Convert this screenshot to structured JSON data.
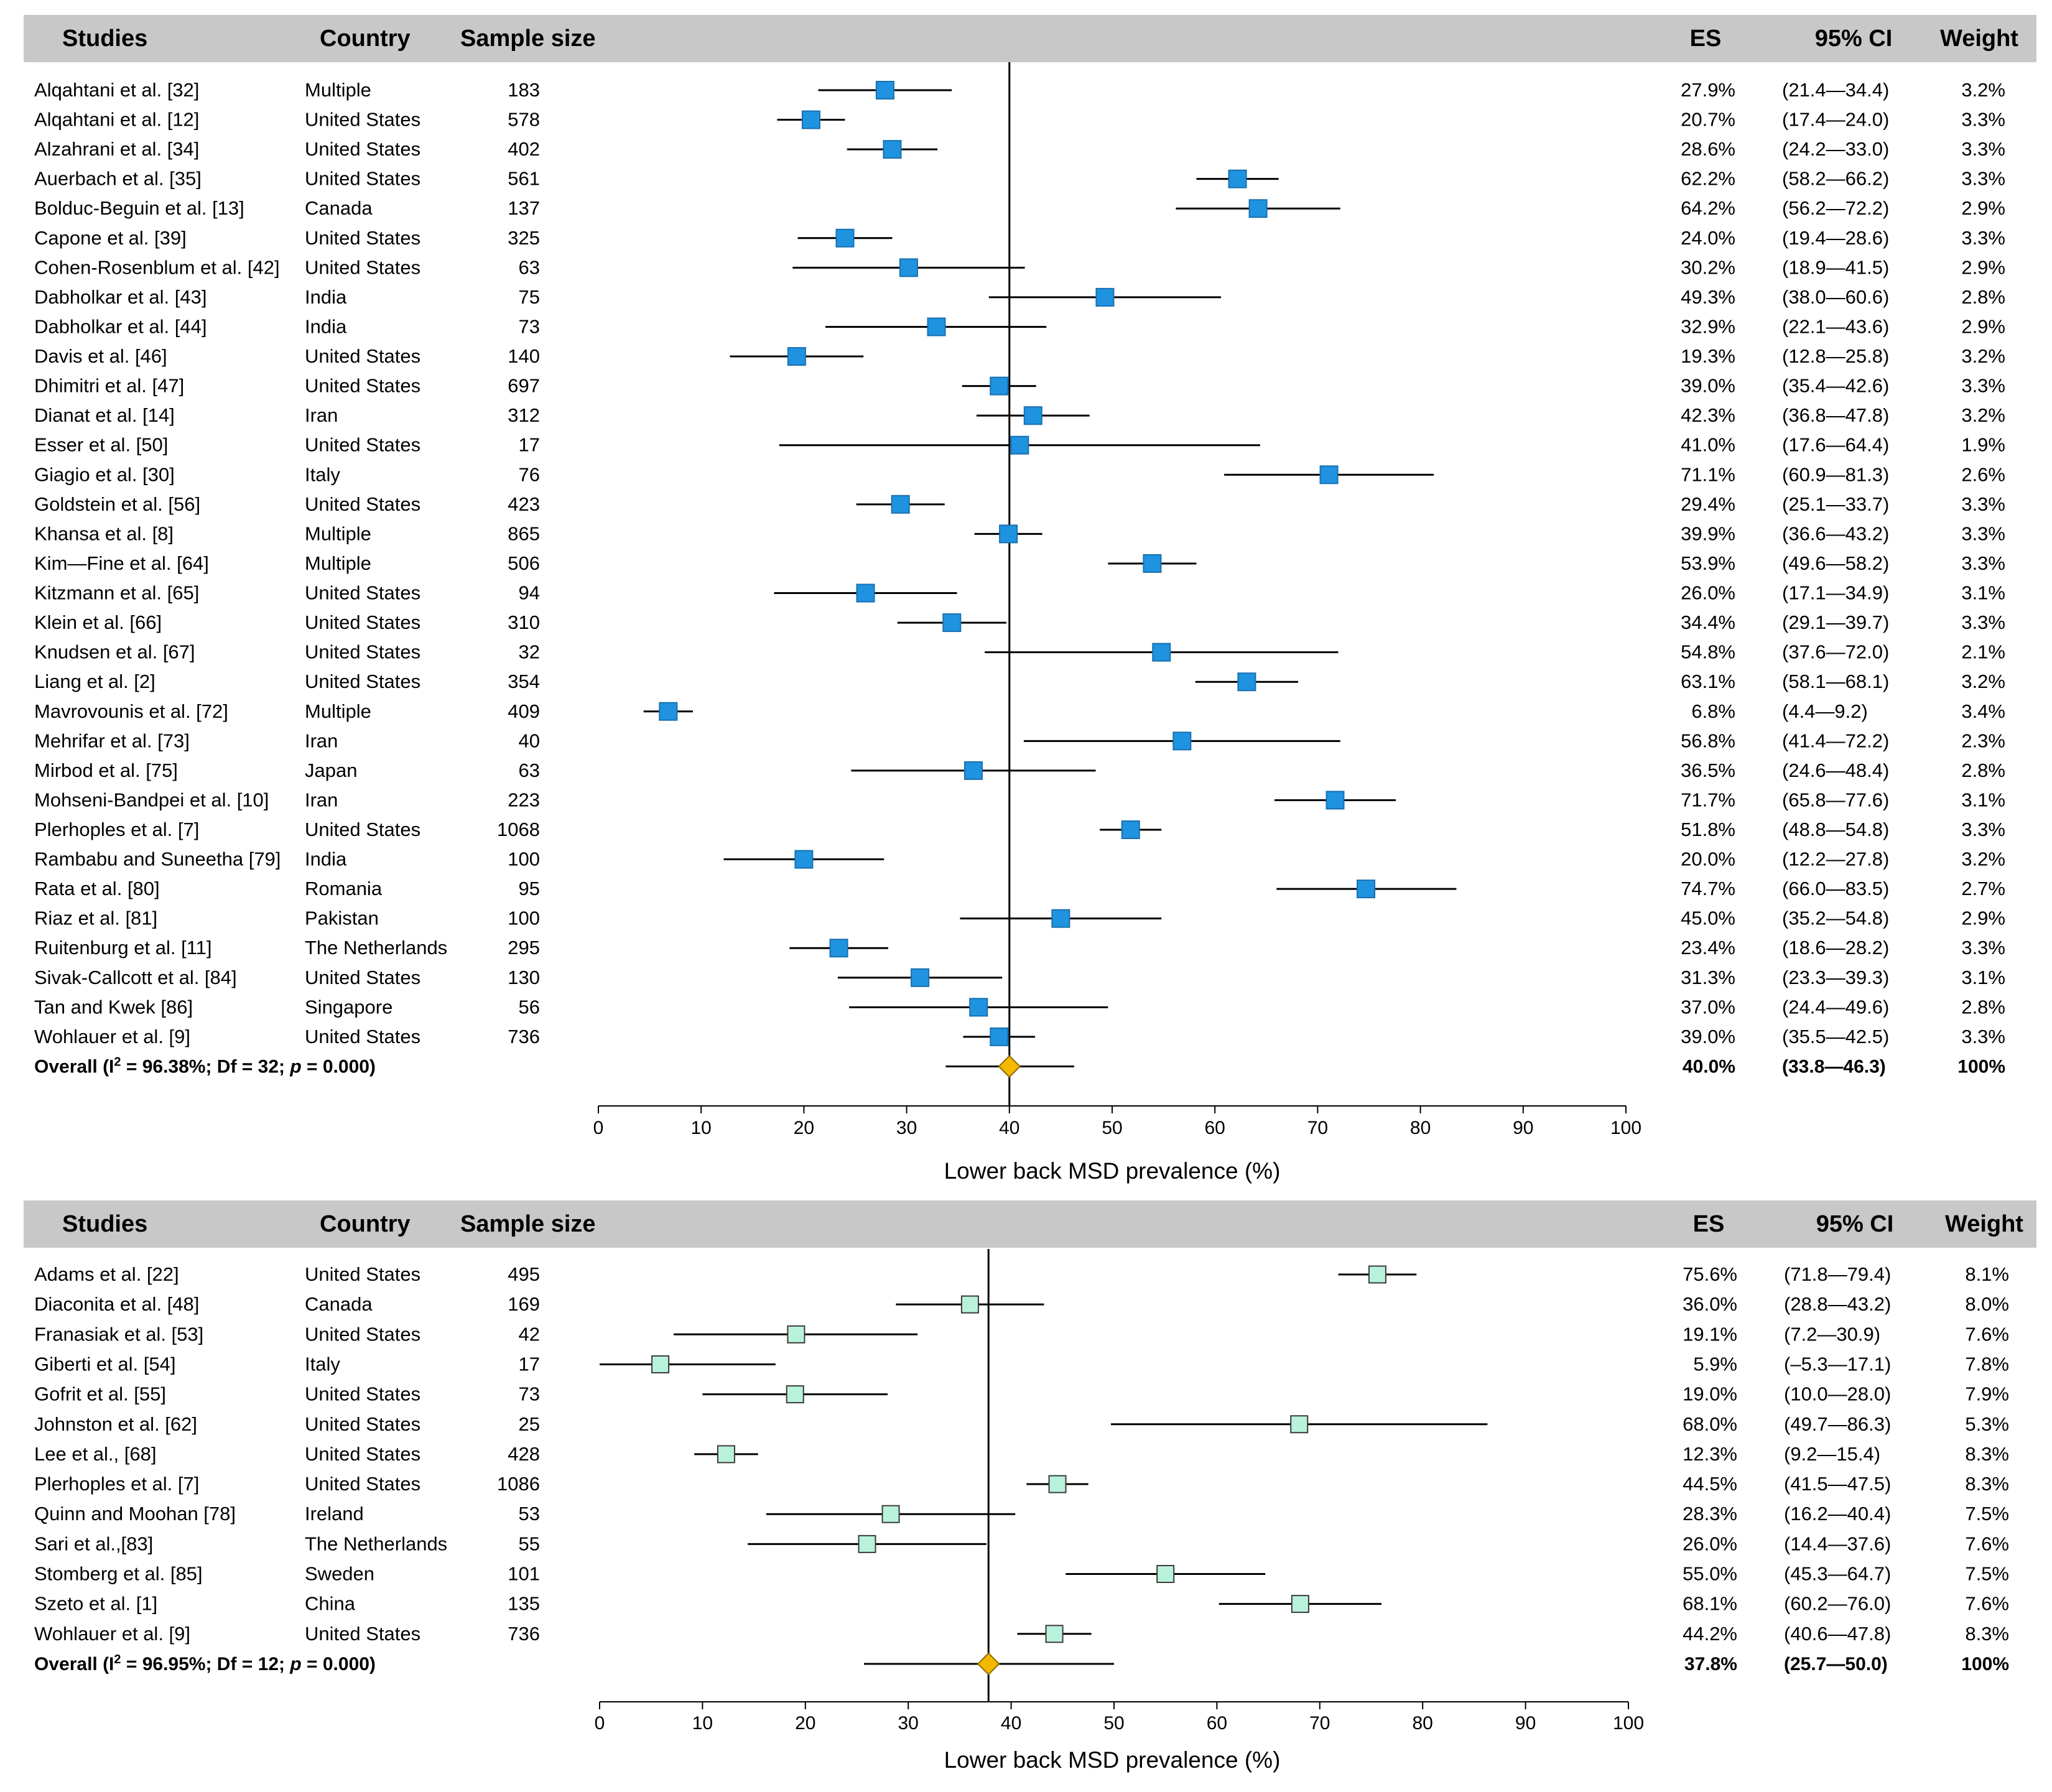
{
  "columns": {
    "studies": "Studies",
    "country": "Country",
    "sample_size": "Sample size",
    "es": "ES",
    "ci": "95% CI",
    "weight": "Weight"
  },
  "colors": {
    "header_bg": "#c8c8c8",
    "panel1_marker": "#1f93e0",
    "panel2_marker": "#b9f2da",
    "diamond": "#f5b800"
  },
  "chart_data": [
    {
      "type": "forest",
      "xlabel": "Lower back MSD prevalence (%)",
      "xlim": [
        0,
        100
      ],
      "xticks": [
        0,
        10,
        20,
        30,
        40,
        50,
        60,
        70,
        80,
        90,
        100
      ],
      "reference_line": 40.0,
      "studies": [
        {
          "study": "Alqahtani et al. [32]",
          "country": "Multiple",
          "n": "183",
          "es": 27.9,
          "lo": 21.4,
          "hi": 34.4,
          "es_label": "27.9%",
          "ci_label": "(21.4—34.4)",
          "weight_label": "3.2%"
        },
        {
          "study": "Alqahtani et al. [12]",
          "country": "United States",
          "n": "578",
          "es": 20.7,
          "lo": 17.4,
          "hi": 24.0,
          "es_label": "20.7%",
          "ci_label": "(17.4—24.0)",
          "weight_label": "3.3%"
        },
        {
          "study": "Alzahrani et al. [34]",
          "country": "United States",
          "n": "402",
          "es": 28.6,
          "lo": 24.2,
          "hi": 33.0,
          "es_label": "28.6%",
          "ci_label": "(24.2—33.0)",
          "weight_label": "3.3%"
        },
        {
          "study": "Auerbach et al. [35]",
          "country": "United States",
          "n": "561",
          "es": 62.2,
          "lo": 58.2,
          "hi": 66.2,
          "es_label": "62.2%",
          "ci_label": "(58.2—66.2)",
          "weight_label": "3.3%"
        },
        {
          "study": "Bolduc-Beguin et al. [13]",
          "country": "Canada",
          "n": "137",
          "es": 64.2,
          "lo": 56.2,
          "hi": 72.2,
          "es_label": "64.2%",
          "ci_label": "(56.2—72.2)",
          "weight_label": "2.9%"
        },
        {
          "study": "Capone et al. [39]",
          "country": "United States",
          "n": "325",
          "es": 24.0,
          "lo": 19.4,
          "hi": 28.6,
          "es_label": "24.0%",
          "ci_label": "(19.4—28.6)",
          "weight_label": "3.3%"
        },
        {
          "study": "Cohen-Rosenblum et al. [42]",
          "country": "United States",
          "n": "63",
          "es": 30.2,
          "lo": 18.9,
          "hi": 41.5,
          "es_label": "30.2%",
          "ci_label": "(18.9—41.5)",
          "weight_label": "2.9%"
        },
        {
          "study": "Dabholkar et al. [43]",
          "country": "India",
          "n": "75",
          "es": 49.3,
          "lo": 38.0,
          "hi": 60.6,
          "es_label": "49.3%",
          "ci_label": "(38.0—60.6)",
          "weight_label": "2.8%"
        },
        {
          "study": "Dabholkar et al. [44]",
          "country": "India",
          "n": "73",
          "es": 32.9,
          "lo": 22.1,
          "hi": 43.6,
          "es_label": "32.9%",
          "ci_label": "(22.1—43.6)",
          "weight_label": "2.9%"
        },
        {
          "study": "Davis et al. [46]",
          "country": "United States",
          "n": "140",
          "es": 19.3,
          "lo": 12.8,
          "hi": 25.8,
          "es_label": "19.3%",
          "ci_label": "(12.8—25.8)",
          "weight_label": "3.2%"
        },
        {
          "study": "Dhimitri et al. [47]",
          "country": "United States",
          "n": "697",
          "es": 39.0,
          "lo": 35.4,
          "hi": 42.6,
          "es_label": "39.0%",
          "ci_label": "(35.4—42.6)",
          "weight_label": "3.3%"
        },
        {
          "study": "Dianat et al. [14]",
          "country": "Iran",
          "n": "312",
          "es": 42.3,
          "lo": 36.8,
          "hi": 47.8,
          "es_label": "42.3%",
          "ci_label": "(36.8—47.8)",
          "weight_label": "3.2%"
        },
        {
          "study": "Esser et al. [50]",
          "country": "United States",
          "n": "17",
          "es": 41.0,
          "lo": 17.6,
          "hi": 64.4,
          "es_label": "41.0%",
          "ci_label": "(17.6—64.4)",
          "weight_label": "1.9%"
        },
        {
          "study": "Giagio et al. [30]",
          "country": "Italy",
          "n": "76",
          "es": 71.1,
          "lo": 60.9,
          "hi": 81.3,
          "es_label": "71.1%",
          "ci_label": "(60.9—81.3)",
          "weight_label": "2.6%"
        },
        {
          "study": "Goldstein et al. [56]",
          "country": "United States",
          "n": "423",
          "es": 29.4,
          "lo": 25.1,
          "hi": 33.7,
          "es_label": "29.4%",
          "ci_label": "(25.1—33.7)",
          "weight_label": "3.3%"
        },
        {
          "study": "Khansa et al. [8]",
          "country": "Multiple",
          "n": "865",
          "es": 39.9,
          "lo": 36.6,
          "hi": 43.2,
          "es_label": "39.9%",
          "ci_label": "(36.6—43.2)",
          "weight_label": "3.3%"
        },
        {
          "study": "Kim—Fine et al. [64]",
          "country": "Multiple",
          "n": "506",
          "es": 53.9,
          "lo": 49.6,
          "hi": 58.2,
          "es_label": "53.9%",
          "ci_label": "(49.6—58.2)",
          "weight_label": "3.3%"
        },
        {
          "study": "Kitzmann et al. [65]",
          "country": "United States",
          "n": "94",
          "es": 26.0,
          "lo": 17.1,
          "hi": 34.9,
          "es_label": "26.0%",
          "ci_label": "(17.1—34.9)",
          "weight_label": "3.1%"
        },
        {
          "study": "Klein et al. [66]",
          "country": "United States",
          "n": "310",
          "es": 34.4,
          "lo": 29.1,
          "hi": 39.7,
          "es_label": "34.4%",
          "ci_label": "(29.1—39.7)",
          "weight_label": "3.3%"
        },
        {
          "study": "Knudsen et al. [67]",
          "country": "United States",
          "n": "32",
          "es": 54.8,
          "lo": 37.6,
          "hi": 72.0,
          "es_label": "54.8%",
          "ci_label": "(37.6—72.0)",
          "weight_label": "2.1%"
        },
        {
          "study": "Liang et al. [2]",
          "country": "United States",
          "n": "354",
          "es": 63.1,
          "lo": 58.1,
          "hi": 68.1,
          "es_label": "63.1%",
          "ci_label": "(58.1—68.1)",
          "weight_label": "3.2%"
        },
        {
          "study": "Mavrovounis et al. [72]",
          "country": "Multiple",
          "n": "409",
          "es": 6.8,
          "lo": 4.4,
          "hi": 9.2,
          "es_label": "6.8%",
          "ci_label": "(4.4—9.2)",
          "weight_label": "3.4%"
        },
        {
          "study": "Mehrifar et al. [73]",
          "country": "Iran",
          "n": "40",
          "es": 56.8,
          "lo": 41.4,
          "hi": 72.2,
          "es_label": "56.8%",
          "ci_label": "(41.4—72.2)",
          "weight_label": "2.3%"
        },
        {
          "study": "Mirbod et al. [75]",
          "country": "Japan",
          "n": "63",
          "es": 36.5,
          "lo": 24.6,
          "hi": 48.4,
          "es_label": "36.5%",
          "ci_label": "(24.6—48.4)",
          "weight_label": "2.8%"
        },
        {
          "study": "Mohseni-Bandpei et al. [10]",
          "country": "Iran",
          "n": "223",
          "es": 71.7,
          "lo": 65.8,
          "hi": 77.6,
          "es_label": "71.7%",
          "ci_label": "(65.8—77.6)",
          "weight_label": "3.1%"
        },
        {
          "study": "Plerhoples et al. [7]",
          "country": "United States",
          "n": "1068",
          "es": 51.8,
          "lo": 48.8,
          "hi": 54.8,
          "es_label": "51.8%",
          "ci_label": "(48.8—54.8)",
          "weight_label": "3.3%"
        },
        {
          "study": "Rambabu and Suneetha [79]",
          "country": "India",
          "n": "100",
          "es": 20.0,
          "lo": 12.2,
          "hi": 27.8,
          "es_label": "20.0%",
          "ci_label": "(12.2—27.8)",
          "weight_label": "3.2%"
        },
        {
          "study": "Rata et al. [80]",
          "country": "Romania",
          "n": "95",
          "es": 74.7,
          "lo": 66.0,
          "hi": 83.5,
          "es_label": "74.7%",
          "ci_label": "(66.0—83.5)",
          "weight_label": "2.7%"
        },
        {
          "study": "Riaz et al. [81]",
          "country": "Pakistan",
          "n": "100",
          "es": 45.0,
          "lo": 35.2,
          "hi": 54.8,
          "es_label": "45.0%",
          "ci_label": "(35.2—54.8)",
          "weight_label": "2.9%"
        },
        {
          "study": "Ruitenburg et al. [11]",
          "country": "The Netherlands",
          "n": "295",
          "es": 23.4,
          "lo": 18.6,
          "hi": 28.2,
          "es_label": "23.4%",
          "ci_label": "(18.6—28.2)",
          "weight_label": "3.3%"
        },
        {
          "study": "Sivak-Callcott et al. [84]",
          "country": "United States",
          "n": "130",
          "es": 31.3,
          "lo": 23.3,
          "hi": 39.3,
          "es_label": "31.3%",
          "ci_label": "(23.3—39.3)",
          "weight_label": "3.1%"
        },
        {
          "study": "Tan and Kwek [86]",
          "country": "Singapore",
          "n": "56",
          "es": 37.0,
          "lo": 24.4,
          "hi": 49.6,
          "es_label": "37.0%",
          "ci_label": "(24.4—49.6)",
          "weight_label": "2.8%"
        },
        {
          "study": "Wohlauer et al. [9]",
          "country": "United States",
          "n": "736",
          "es": 39.0,
          "lo": 35.5,
          "hi": 42.5,
          "es_label": "39.0%",
          "ci_label": "(35.5—42.5)",
          "weight_label": "3.3%"
        }
      ],
      "overall": {
        "label_prefix": "Overall (I",
        "label_sup": "2",
        "label_mid": " = 96.38%; Df = 32; ",
        "label_p": "p",
        "label_suffix": " = 0.000)",
        "es": 40.0,
        "lo": 33.8,
        "hi": 46.3,
        "es_label": "40.0%",
        "ci_label": "(33.8—46.3)",
        "weight_label": "100%"
      }
    },
    {
      "type": "forest",
      "xlabel": "Lower back MSD prevalence (%)",
      "xlim": [
        0,
        100
      ],
      "xticks": [
        0,
        10,
        20,
        30,
        40,
        50,
        60,
        70,
        80,
        90,
        100
      ],
      "reference_line": 37.8,
      "studies": [
        {
          "study": "Adams et al. [22]",
          "country": "United States",
          "n": "495",
          "es": 75.6,
          "lo": 71.8,
          "hi": 79.4,
          "es_label": "75.6%",
          "ci_label": "(71.8—79.4)",
          "weight_label": "8.1%"
        },
        {
          "study": "Diaconita et al. [48]",
          "country": "Canada",
          "n": "169",
          "es": 36.0,
          "lo": 28.8,
          "hi": 43.2,
          "es_label": "36.0%",
          "ci_label": "(28.8—43.2)",
          "weight_label": "8.0%"
        },
        {
          "study": "Franasiak et al. [53]",
          "country": "United States",
          "n": "42",
          "es": 19.1,
          "lo": 7.2,
          "hi": 30.9,
          "es_label": "19.1%",
          "ci_label": "(7.2—30.9)",
          "weight_label": "7.6%"
        },
        {
          "study": "Giberti et al. [54]",
          "country": "Italy",
          "n": "17",
          "es": 5.9,
          "lo": -5.3,
          "hi": 17.1,
          "es_label": "5.9%",
          "ci_label": "(–5.3—17.1)",
          "weight_label": "7.8%"
        },
        {
          "study": "Gofrit et al. [55]",
          "country": "United States",
          "n": "73",
          "es": 19.0,
          "lo": 10.0,
          "hi": 28.0,
          "es_label": "19.0%",
          "ci_label": "(10.0—28.0)",
          "weight_label": "7.9%"
        },
        {
          "study": "Johnston et al. [62]",
          "country": "United States",
          "n": "25",
          "es": 68.0,
          "lo": 49.7,
          "hi": 86.3,
          "es_label": "68.0%",
          "ci_label": "(49.7—86.3)",
          "weight_label": "5.3%"
        },
        {
          "study": "Lee et al., [68]",
          "country": "United States",
          "n": "428",
          "es": 12.3,
          "lo": 9.2,
          "hi": 15.4,
          "es_label": "12.3%",
          "ci_label": "(9.2—15.4)",
          "weight_label": "8.3%"
        },
        {
          "study": "Plerhoples et al. [7]",
          "country": "United States",
          "n": "1086",
          "es": 44.5,
          "lo": 41.5,
          "hi": 47.5,
          "es_label": "44.5%",
          "ci_label": "(41.5—47.5)",
          "weight_label": "8.3%"
        },
        {
          "study": "Quinn and Moohan [78]",
          "country": "Ireland",
          "n": "53",
          "es": 28.3,
          "lo": 16.2,
          "hi": 40.4,
          "es_label": "28.3%",
          "ci_label": "(16.2—40.4)",
          "weight_label": "7.5%"
        },
        {
          "study": "Sari et al.,[83]",
          "country": "The Netherlands",
          "n": "55",
          "es": 26.0,
          "lo": 14.4,
          "hi": 37.6,
          "es_label": "26.0%",
          "ci_label": "(14.4—37.6)",
          "weight_label": "7.6%"
        },
        {
          "study": "Stomberg et al. [85]",
          "country": "Sweden",
          "n": "101",
          "es": 55.0,
          "lo": 45.3,
          "hi": 64.7,
          "es_label": "55.0%",
          "ci_label": "(45.3—64.7)",
          "weight_label": "7.5%"
        },
        {
          "study": "Szeto et al. [1]",
          "country": "China",
          "n": "135",
          "es": 68.1,
          "lo": 60.2,
          "hi": 76.0,
          "es_label": "68.1%",
          "ci_label": "(60.2—76.0)",
          "weight_label": "7.6%"
        },
        {
          "study": "Wohlauer et al. [9]",
          "country": "United States",
          "n": "736",
          "es": 44.2,
          "lo": 40.6,
          "hi": 47.8,
          "es_label": "44.2%",
          "ci_label": "(40.6—47.8)",
          "weight_label": "8.3%"
        }
      ],
      "overall": {
        "label_prefix": "Overall (I",
        "label_sup": "2",
        "label_mid": " = 96.95%; Df = 12; ",
        "label_p": "p",
        "label_suffix": " = 0.000)",
        "es": 37.8,
        "lo": 25.7,
        "hi": 50.0,
        "es_label": "37.8%",
        "ci_label": "(25.7—50.0)",
        "weight_label": "100%"
      }
    }
  ]
}
